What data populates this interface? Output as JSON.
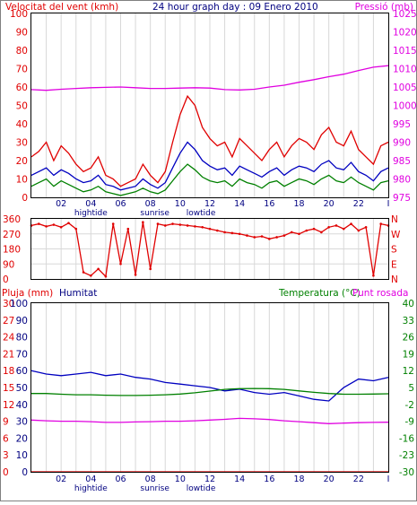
{
  "colors": {
    "red": "#e00000",
    "magenta": "#e000e0",
    "blue": "#0000c0",
    "green": "#008000",
    "grid": "#d8d8d8",
    "frame": "#000000",
    "label": "#000080"
  },
  "chart_data": [
    {
      "type": "line",
      "title": "24 hour graph day : 09 Enero 2010",
      "ylabel_left": "Velocitat del vent (kmh)",
      "ylabel_right": "Pressió (mb)",
      "x_ticks": [
        "02",
        "04",
        "06",
        "08",
        "10",
        "12",
        "14",
        "16",
        "18",
        "20",
        "22",
        "I"
      ],
      "x_range": [
        0,
        24
      ],
      "annotations": [
        {
          "label": "hightide",
          "x": 4.0
        },
        {
          "label": "sunrise",
          "x": 8.3
        },
        {
          "label": "lowtide",
          "x": 11.4
        }
      ],
      "ylim_left": [
        0,
        100
      ],
      "y_ticks_left": [
        0,
        10,
        20,
        30,
        40,
        50,
        60,
        70,
        80,
        90,
        100
      ],
      "ylim_right": [
        975,
        1025
      ],
      "y_ticks_right": [
        975,
        980,
        985,
        990,
        995,
        1000,
        1005,
        1010,
        1015,
        1020,
        1025
      ],
      "grid": true,
      "series": [
        {
          "key": "gust",
          "axis": "left",
          "color": "red",
          "x": [
            0,
            0.5,
            1,
            1.5,
            2,
            2.5,
            3,
            3.5,
            4,
            4.5,
            5,
            5.5,
            6,
            6.5,
            7,
            7.5,
            8,
            8.5,
            9,
            9.5,
            10,
            10.5,
            11,
            11.5,
            12,
            12.5,
            13,
            13.5,
            14,
            14.5,
            15,
            15.5,
            16,
            16.5,
            17,
            17.5,
            18,
            18.5,
            19,
            19.5,
            20,
            20.5,
            21,
            21.5,
            22,
            22.5,
            23,
            23.5,
            24
          ],
          "y": [
            22,
            25,
            30,
            20,
            28,
            24,
            18,
            14,
            16,
            22,
            12,
            10,
            6,
            8,
            10,
            18,
            12,
            8,
            14,
            30,
            45,
            55,
            50,
            38,
            32,
            28,
            30,
            22,
            32,
            28,
            24,
            20,
            26,
            30,
            22,
            28,
            32,
            30,
            26,
            34,
            38,
            30,
            28,
            36,
            26,
            22,
            18,
            28,
            30
          ]
        },
        {
          "key": "wind",
          "axis": "left",
          "color": "blue",
          "x": [
            0,
            0.5,
            1,
            1.5,
            2,
            2.5,
            3,
            3.5,
            4,
            4.5,
            5,
            5.5,
            6,
            6.5,
            7,
            7.5,
            8,
            8.5,
            9,
            9.5,
            10,
            10.5,
            11,
            11.5,
            12,
            12.5,
            13,
            13.5,
            14,
            14.5,
            15,
            15.5,
            16,
            16.5,
            17,
            17.5,
            18,
            18.5,
            19,
            19.5,
            20,
            20.5,
            21,
            21.5,
            22,
            22.5,
            23,
            23.5,
            24
          ],
          "y": [
            12,
            14,
            16,
            12,
            15,
            13,
            10,
            8,
            9,
            12,
            7,
            6,
            4,
            5,
            6,
            10,
            7,
            5,
            8,
            16,
            24,
            30,
            26,
            20,
            17,
            15,
            16,
            12,
            17,
            15,
            13,
            11,
            14,
            16,
            12,
            15,
            17,
            16,
            14,
            18,
            20,
            16,
            15,
            19,
            14,
            12,
            9,
            14,
            16
          ]
        },
        {
          "key": "avg",
          "axis": "left",
          "color": "green",
          "x": [
            0,
            0.5,
            1,
            1.5,
            2,
            2.5,
            3,
            3.5,
            4,
            4.5,
            5,
            5.5,
            6,
            6.5,
            7,
            7.5,
            8,
            8.5,
            9,
            9.5,
            10,
            10.5,
            11,
            11.5,
            12,
            12.5,
            13,
            13.5,
            14,
            14.5,
            15,
            15.5,
            16,
            16.5,
            17,
            17.5,
            18,
            18.5,
            19,
            19.5,
            20,
            20.5,
            21,
            21.5,
            22,
            22.5,
            23,
            23.5,
            24
          ],
          "y": [
            6,
            8,
            10,
            6,
            9,
            7,
            5,
            3,
            4,
            6,
            3,
            2,
            1,
            2,
            3,
            5,
            3,
            2,
            4,
            9,
            14,
            18,
            15,
            11,
            9,
            8,
            9,
            6,
            10,
            8,
            7,
            5,
            8,
            9,
            6,
            8,
            10,
            9,
            7,
            10,
            12,
            9,
            8,
            11,
            8,
            6,
            4,
            8,
            9
          ]
        },
        {
          "key": "pressure",
          "axis": "right",
          "color": "magenta",
          "x": [
            0,
            1,
            2,
            3,
            4,
            5,
            6,
            7,
            8,
            9,
            10,
            11,
            12,
            13,
            14,
            15,
            16,
            17,
            18,
            19,
            20,
            21,
            22,
            23,
            24
          ],
          "y": [
            1004.3,
            1004.1,
            1004.4,
            1004.6,
            1004.8,
            1004.9,
            1005,
            1004.8,
            1004.6,
            1004.6,
            1004.7,
            1004.8,
            1004.7,
            1004.3,
            1004.2,
            1004.4,
            1005,
            1005.5,
            1006.3,
            1007,
            1007.8,
            1008.5,
            1009.5,
            1010.4,
            1010.8
          ]
        }
      ]
    },
    {
      "type": "scatter",
      "ylabels_right": [
        "N",
        "W",
        "S",
        "E",
        "N"
      ],
      "ylim": [
        0,
        360
      ],
      "y_ticks": [
        0,
        90,
        180,
        270,
        360
      ],
      "x_range": [
        0,
        24
      ],
      "grid": true,
      "series": [
        {
          "key": "dir",
          "color": "red",
          "x": [
            0,
            0.5,
            1,
            1.5,
            2,
            2.5,
            3,
            3.5,
            4,
            4.5,
            5,
            5.5,
            6,
            6.5,
            7,
            7.5,
            8,
            8.5,
            9,
            9.5,
            10,
            10.5,
            11,
            11.5,
            12,
            12.5,
            13,
            13.5,
            14,
            14.5,
            15,
            15.5,
            16,
            16.5,
            17,
            17.5,
            18,
            18.5,
            19,
            19.5,
            20,
            20.5,
            21,
            21.5,
            22,
            22.5,
            23,
            23.5,
            24
          ],
          "y": [
            320,
            330,
            315,
            325,
            310,
            335,
            300,
            40,
            20,
            60,
            15,
            330,
            90,
            300,
            25,
            340,
            60,
            330,
            320,
            330,
            325,
            320,
            315,
            310,
            300,
            290,
            280,
            275,
            270,
            260,
            250,
            255,
            240,
            250,
            260,
            280,
            270,
            290,
            300,
            280,
            310,
            320,
            300,
            330,
            290,
            310,
            20,
            330,
            320
          ]
        }
      ]
    },
    {
      "type": "line",
      "ylabel_left_1": "Pluja (mm)",
      "ylabel_left_2": "Humitat",
      "ylabel_right": "Temperatura (°C)",
      "ylabel_right_2": "Punt rosada",
      "x_ticks": [
        "02",
        "04",
        "06",
        "08",
        "10",
        "12",
        "14",
        "16",
        "18",
        "20",
        "22",
        "I"
      ],
      "x_range": [
        0,
        24
      ],
      "annotations": [
        {
          "label": "hightide",
          "x": 4.0
        },
        {
          "label": "sunrise",
          "x": 8.3
        },
        {
          "label": "lowtide",
          "x": 11.4
        }
      ],
      "y_ticks_rain": [
        0,
        3,
        6,
        9,
        12,
        15,
        18,
        21,
        24,
        27,
        30
      ],
      "ylim_rain": [
        0,
        30
      ],
      "y_ticks_humidity": [
        0,
        10,
        20,
        30,
        40,
        50,
        60,
        70,
        80,
        90,
        100
      ],
      "ylim_humidity": [
        0,
        100
      ],
      "y_ticks_temp": [
        -30,
        -23,
        -16,
        -9,
        -2,
        5,
        12,
        19,
        26,
        33,
        40
      ],
      "ylim_temp": [
        -30,
        40
      ],
      "grid": true,
      "series": [
        {
          "key": "rain",
          "axis": "rain",
          "color": "red",
          "x": [
            0,
            24
          ],
          "y": [
            0,
            0
          ]
        },
        {
          "key": "humidity",
          "axis": "humidity",
          "color": "blue",
          "x": [
            0,
            1,
            2,
            3,
            4,
            5,
            6,
            7,
            8,
            9,
            10,
            11,
            12,
            13,
            14,
            15,
            16,
            17,
            18,
            19,
            20,
            21,
            22,
            23,
            24
          ],
          "y": [
            60,
            58,
            57,
            58,
            59,
            57,
            58,
            56,
            55,
            53,
            52,
            51,
            50,
            48,
            49,
            47,
            46,
            47,
            45,
            43,
            42,
            50,
            55,
            54,
            56
          ]
        },
        {
          "key": "temperature",
          "axis": "temp",
          "color": "green",
          "x": [
            0,
            1,
            2,
            3,
            4,
            5,
            6,
            7,
            8,
            9,
            10,
            11,
            12,
            13,
            14,
            15,
            16,
            17,
            18,
            19,
            20,
            21,
            22,
            23,
            24
          ],
          "y": [
            2.5,
            2.5,
            2.2,
            2,
            2,
            1.8,
            1.7,
            1.7,
            1.8,
            2,
            2.3,
            2.8,
            3.5,
            4.2,
            4.5,
            4.6,
            4.5,
            4.2,
            3.6,
            3,
            2.5,
            2.2,
            2.2,
            2.3,
            2.4
          ]
        },
        {
          "key": "dewpoint",
          "axis": "temp",
          "color": "magenta",
          "x": [
            0,
            1,
            2,
            3,
            4,
            5,
            6,
            7,
            8,
            9,
            10,
            11,
            12,
            13,
            14,
            15,
            16,
            17,
            18,
            19,
            20,
            21,
            22,
            23,
            24
          ],
          "y": [
            -8.5,
            -8.8,
            -9,
            -9,
            -9.2,
            -9.5,
            -9.5,
            -9.3,
            -9.2,
            -9,
            -9,
            -8.8,
            -8.5,
            -8.2,
            -7.8,
            -8,
            -8.3,
            -8.8,
            -9.2,
            -9.6,
            -10,
            -9.8,
            -9.6,
            -9.5,
            -9.4
          ]
        }
      ]
    }
  ]
}
